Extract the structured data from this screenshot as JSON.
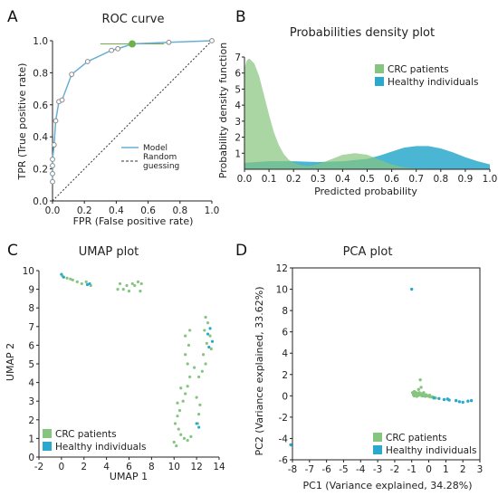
{
  "colors": {
    "crc": "#86c57f",
    "healthy": "#2ba9cc",
    "roc_line": "#6aaed6",
    "point_edge": "#888888",
    "highlight": "#6fb04a"
  },
  "panels": [
    {
      "letter": "A",
      "chart_data": {
        "type": "line",
        "title": "ROC  curve",
        "xlabel": "FPR (False positive rate)",
        "ylabel": "TPR (True positive rate)",
        "xlim": [
          0,
          1
        ],
        "ylim": [
          0,
          1
        ],
        "xticks": [
          "0.0",
          "0.2",
          "0.4",
          "0.6",
          "0.8",
          "1.0"
        ],
        "yticks": [
          "0.0",
          "0.2",
          "0.4",
          "0.6",
          "0.8",
          "1.0"
        ],
        "series": [
          {
            "name": "Model",
            "x": [
              0.0,
              0.0,
              0.0,
              0.0,
              0.01,
              0.02,
              0.04,
              0.06,
              0.12,
              0.22,
              0.37,
              0.41,
              0.5,
              0.73,
              1.0
            ],
            "y": [
              0.12,
              0.17,
              0.22,
              0.26,
              0.35,
              0.5,
              0.62,
              0.63,
              0.79,
              0.87,
              0.94,
              0.95,
              0.98,
              0.99,
              1.0
            ]
          },
          {
            "name": "Random guessing",
            "x": [
              0,
              1
            ],
            "y": [
              0,
              1
            ]
          }
        ],
        "highlight": {
          "x": 0.5,
          "y": 0.98
        },
        "legend": [
          {
            "label": "Model"
          },
          {
            "label": "Random\nguessing"
          }
        ],
        "legend_loc": "lower-right"
      }
    },
    {
      "letter": "B",
      "chart_data": {
        "type": "area",
        "title": "Probabilities density plot",
        "xlabel": "Predicted probability",
        "ylabel": "Probability density function",
        "xlim": [
          0,
          1
        ],
        "ylim": [
          0,
          7
        ],
        "xticks": [
          "0.0",
          "0.1",
          "0.2",
          "0.3",
          "0.4",
          "0.5",
          "0.6",
          "0.7",
          "0.8",
          "0.9",
          "1.0"
        ],
        "yticks": [
          "1",
          "2",
          "3",
          "4",
          "5",
          "6",
          "7"
        ],
        "series": [
          {
            "name": "CRC patients",
            "x": [
              0,
              0.01,
              0.02,
              0.04,
              0.06,
              0.08,
              0.1,
              0.12,
              0.14,
              0.16,
              0.18,
              0.2,
              0.23,
              0.26,
              0.3,
              0.35,
              0.4,
              0.45,
              0.5,
              0.55,
              0.6,
              0.65,
              0.7,
              0.8,
              0.9,
              1.0
            ],
            "y": [
              6.3,
              6.8,
              6.9,
              6.6,
              5.8,
              4.6,
              3.4,
              2.3,
              1.5,
              0.95,
              0.6,
              0.4,
              0.25,
              0.2,
              0.3,
              0.6,
              0.9,
              1.0,
              0.9,
              0.6,
              0.3,
              0.12,
              0.05,
              0.0,
              0.0,
              0.0
            ]
          },
          {
            "name": "Healthy individuals",
            "x": [
              0,
              0.1,
              0.2,
              0.3,
              0.4,
              0.5,
              0.55,
              0.6,
              0.65,
              0.7,
              0.75,
              0.8,
              0.85,
              0.9,
              0.95,
              1.0
            ],
            "y": [
              0.4,
              0.5,
              0.5,
              0.45,
              0.5,
              0.65,
              0.85,
              1.1,
              1.35,
              1.45,
              1.45,
              1.3,
              1.05,
              0.75,
              0.5,
              0.3
            ]
          }
        ],
        "legend_loc": "top-right"
      }
    },
    {
      "letter": "C",
      "chart_data": {
        "type": "scatter",
        "title": "UMAP plot",
        "xlabel": "UMAP 1",
        "ylabel": "UMAP 2",
        "xlim": [
          -2,
          14
        ],
        "ylim": [
          0,
          10
        ],
        "xticks": [
          "-2",
          "0",
          "2",
          "4",
          "6",
          "8",
          "10",
          "12",
          "14"
        ],
        "yticks": [
          "0",
          "1",
          "2",
          "3",
          "4",
          "5",
          "6",
          "7",
          "8",
          "9",
          "10"
        ],
        "series": [
          {
            "name": "CRC patients",
            "points": [
              [
                0.1,
                9.7
              ],
              [
                0.5,
                9.6
              ],
              [
                1.0,
                9.5
              ],
              [
                1.4,
                9.4
              ],
              [
                1.8,
                9.3
              ],
              [
                2.2,
                9.4
              ],
              [
                2.6,
                9.2
              ],
              [
                0.8,
                9.55
              ],
              [
                5.2,
                9.3
              ],
              [
                5.5,
                9.0
              ],
              [
                6.0,
                8.9
              ],
              [
                6.5,
                9.2
              ],
              [
                7.0,
                8.9
              ],
              [
                6.8,
                9.4
              ],
              [
                5.8,
                9.2
              ],
              [
                5.0,
                9.0
              ],
              [
                7.1,
                9.3
              ],
              [
                6.3,
                9.3
              ],
              [
                12.8,
                7.5
              ],
              [
                13.0,
                7.2
              ],
              [
                12.7,
                6.8
              ],
              [
                13.2,
                6.5
              ],
              [
                12.9,
                6.1
              ],
              [
                13.3,
                5.8
              ],
              [
                12.6,
                5.5
              ],
              [
                12.8,
                5.0
              ],
              [
                12.5,
                4.6
              ],
              [
                12.2,
                4.3
              ],
              [
                11.4,
                6.8
              ],
              [
                11.0,
                6.5
              ],
              [
                11.3,
                6.0
              ],
              [
                11.0,
                5.5
              ],
              [
                11.2,
                5.0
              ],
              [
                11.8,
                4.8
              ],
              [
                11.4,
                4.3
              ],
              [
                11.2,
                3.8
              ],
              [
                11.0,
                3.4
              ],
              [
                10.8,
                3.0
              ],
              [
                10.5,
                2.5
              ],
              [
                10.3,
                2.2
              ],
              [
                10.1,
                1.8
              ],
              [
                10.4,
                1.5
              ],
              [
                10.6,
                1.2
              ],
              [
                10.9,
                1.0
              ],
              [
                11.2,
                0.9
              ],
              [
                10.0,
                0.8
              ],
              [
                10.2,
                0.6
              ],
              [
                11.5,
                1.1
              ],
              [
                12.1,
                1.8
              ],
              [
                12.2,
                2.3
              ],
              [
                12.3,
                2.8
              ],
              [
                12.0,
                3.2
              ],
              [
                10.3,
                2.9
              ],
              [
                10.6,
                3.7
              ]
            ]
          },
          {
            "name": "Healthy individuals",
            "points": [
              [
                0.0,
                9.8
              ],
              [
                0.2,
                9.65
              ],
              [
                2.3,
                9.25
              ],
              [
                2.5,
                9.3
              ],
              [
                13.2,
                6.9
              ],
              [
                13.4,
                6.2
              ],
              [
                13.1,
                5.9
              ],
              [
                12.0,
                1.8
              ],
              [
                12.2,
                1.6
              ],
              [
                13.0,
                6.6
              ]
            ]
          }
        ],
        "legend_loc": "lower-left"
      }
    },
    {
      "letter": "D",
      "chart_data": {
        "type": "scatter",
        "title": "PCA plot",
        "xlabel": "PC1 (Variance explained, 34.28%)",
        "ylabel": "PC2 (Variance explained, 33.62%)",
        "xlim": [
          -8,
          3
        ],
        "ylim": [
          -6,
          12
        ],
        "xticks": [
          "-8",
          "-7",
          "-6",
          "-5",
          "-4",
          "-3",
          "-2",
          "-1",
          "0",
          "1",
          "2",
          "3"
        ],
        "yticks": [
          "-6",
          "-4",
          "-2",
          "0",
          "2",
          "4",
          "6",
          "8",
          "10",
          "12"
        ],
        "series": [
          {
            "name": "CRC patients",
            "points": [
              [
                -0.9,
                0.1
              ],
              [
                -0.8,
                0.15
              ],
              [
                -0.7,
                0.2
              ],
              [
                -0.6,
                0.05
              ],
              [
                -0.5,
                0.1
              ],
              [
                -0.4,
                0.0
              ],
              [
                -0.3,
                0.0
              ],
              [
                -0.2,
                -0.05
              ],
              [
                -0.1,
                0.0
              ],
              [
                0.0,
                -0.05
              ],
              [
                0.1,
                -0.1
              ],
              [
                0.2,
                -0.1
              ],
              [
                -0.95,
                0.3
              ],
              [
                -0.85,
                0.4
              ],
              [
                -0.75,
                0.3
              ],
              [
                -0.65,
                0.25
              ],
              [
                -0.55,
                0.3
              ],
              [
                -0.45,
                0.2
              ],
              [
                -0.35,
                0.15
              ],
              [
                -0.25,
                0.1
              ],
              [
                -0.5,
                1.5
              ],
              [
                -0.45,
                0.8
              ],
              [
                -0.6,
                0.6
              ],
              [
                -0.3,
                0.3
              ],
              [
                -0.15,
                0.1
              ],
              [
                0.05,
                0.05
              ],
              [
                0.3,
                -0.15
              ],
              [
                -0.7,
                -0.05
              ],
              [
                -0.85,
                0.0
              ],
              [
                0.4,
                -0.2
              ]
            ]
          },
          {
            "name": "Healthy individuals",
            "points": [
              [
                -1.0,
                10.0
              ],
              [
                -8.1,
                -4.6
              ],
              [
                0.3,
                -0.2
              ],
              [
                0.6,
                -0.25
              ],
              [
                0.9,
                -0.35
              ],
              [
                1.2,
                -0.4
              ],
              [
                1.6,
                -0.45
              ],
              [
                2.0,
                -0.6
              ],
              [
                2.3,
                -0.5
              ],
              [
                1.8,
                -0.55
              ],
              [
                2.5,
                -0.45
              ],
              [
                1.1,
                -0.3
              ]
            ]
          }
        ],
        "legend_loc": "lower-right"
      }
    }
  ],
  "legend_labels": {
    "crc": "CRC patients",
    "healthy": "Healthy individuals"
  }
}
